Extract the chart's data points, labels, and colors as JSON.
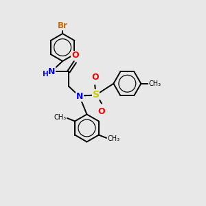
{
  "background_color": "#e8e8e8",
  "bond_color": "#000000",
  "atom_colors": {
    "Br": "#cc6600",
    "N": "#0000ff",
    "O": "#ff0000",
    "S": "#cccc00",
    "C": "#000000",
    "H": "#0000ff"
  },
  "figsize": [
    3.0,
    3.0
  ],
  "dpi": 100,
  "xlim": [
    0,
    10
  ],
  "ylim": [
    0,
    10
  ]
}
